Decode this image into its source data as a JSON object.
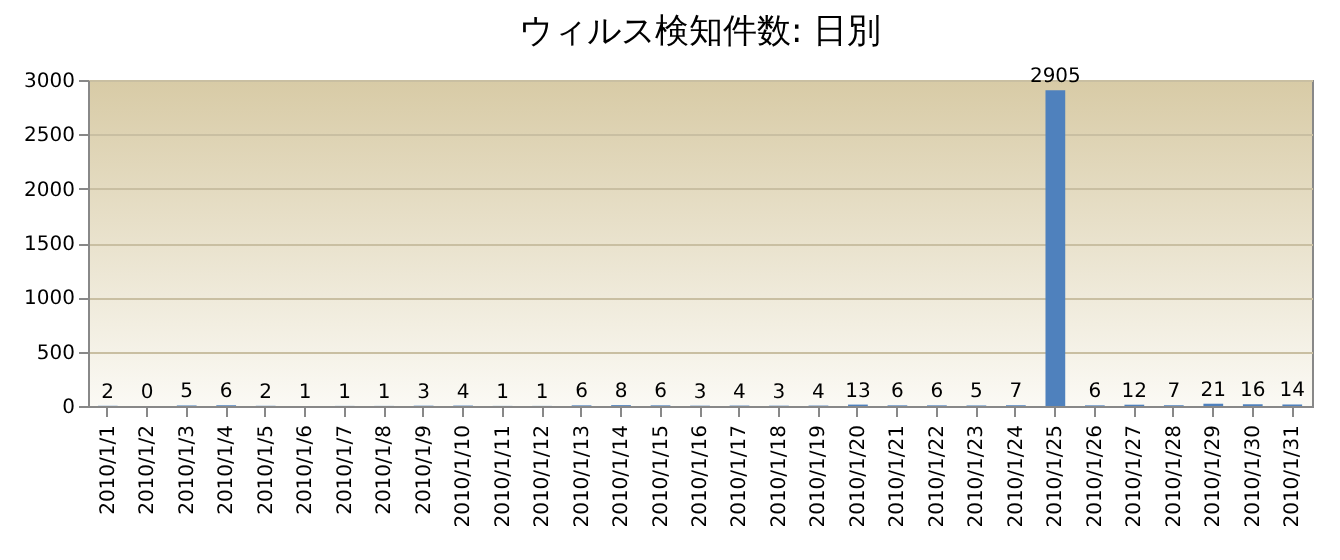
{
  "chart_data": {
    "type": "bar",
    "title": "ウィルス検知件数: 日別",
    "categories": [
      "2010/1/1",
      "2010/1/2",
      "2010/1/3",
      "2010/1/4",
      "2010/1/5",
      "2010/1/6",
      "2010/1/7",
      "2010/1/8",
      "2010/1/9",
      "2010/1/10",
      "2010/1/11",
      "2010/1/12",
      "2010/1/13",
      "2010/1/14",
      "2010/1/15",
      "2010/1/16",
      "2010/1/17",
      "2010/1/18",
      "2010/1/19",
      "2010/1/20",
      "2010/1/21",
      "2010/1/22",
      "2010/1/23",
      "2010/1/24",
      "2010/1/25",
      "2010/1/26",
      "2010/1/27",
      "2010/1/28",
      "2010/1/29",
      "2010/1/30",
      "2010/1/31"
    ],
    "values": [
      2,
      0,
      5,
      6,
      2,
      1,
      1,
      1,
      3,
      4,
      1,
      1,
      6,
      8,
      6,
      3,
      4,
      3,
      4,
      13,
      6,
      6,
      5,
      7,
      2905,
      6,
      12,
      7,
      21,
      16,
      14
    ],
    "color": "#4f81bd",
    "ylim": [
      0,
      3000
    ],
    "yticks": [
      0,
      500,
      1000,
      1500,
      2000,
      2500,
      3000
    ],
    "grid": "y",
    "data_labels": true
  }
}
